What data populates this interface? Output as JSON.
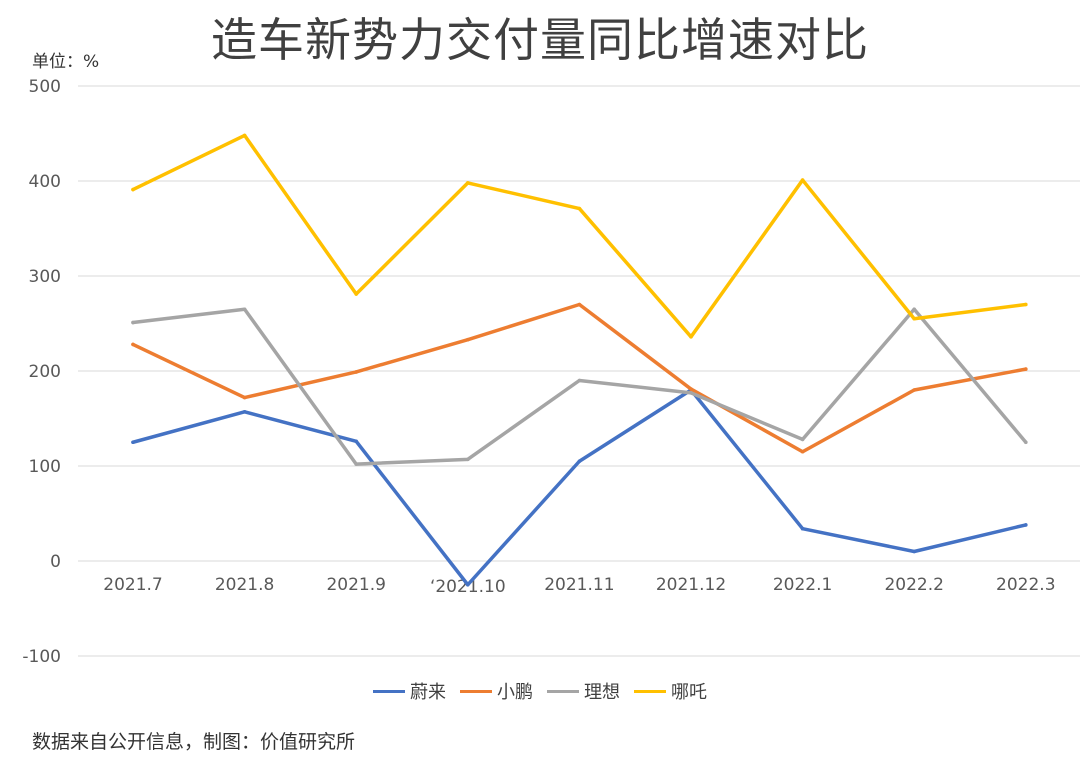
{
  "chart_data": {
    "type": "line",
    "title": "造车新势力交付量同比增速对比",
    "unit_label": "单位：%",
    "source": "数据来自公开信息，制图：价值研究所",
    "categories": [
      "2021.7",
      "2021.8",
      "2021.9",
      "‘2021.10",
      "2021.11",
      "2021.12",
      "2022.1",
      "2022.2",
      "2022.3"
    ],
    "ylim": [
      -100,
      500
    ],
    "yticks": [
      "-100",
      "0",
      "100",
      "200",
      "300",
      "400",
      "500"
    ],
    "grid": true,
    "legend_position": "bottom",
    "series": [
      {
        "name": "蔚来",
        "color": "#4472C4",
        "values": [
          125,
          157,
          126,
          -25,
          105,
          180,
          34,
          10,
          38
        ]
      },
      {
        "name": "小鹏",
        "color": "#ED7D31",
        "values": [
          228,
          172,
          199,
          233,
          270,
          181,
          115,
          180,
          202
        ]
      },
      {
        "name": "理想",
        "color": "#A5A5A5",
        "values": [
          251,
          265,
          102,
          107,
          190,
          177,
          128,
          265,
          125
        ]
      },
      {
        "name": "哪吒",
        "color": "#FFC000",
        "values": [
          391,
          448,
          281,
          398,
          371,
          236,
          401,
          255,
          270
        ]
      }
    ]
  }
}
